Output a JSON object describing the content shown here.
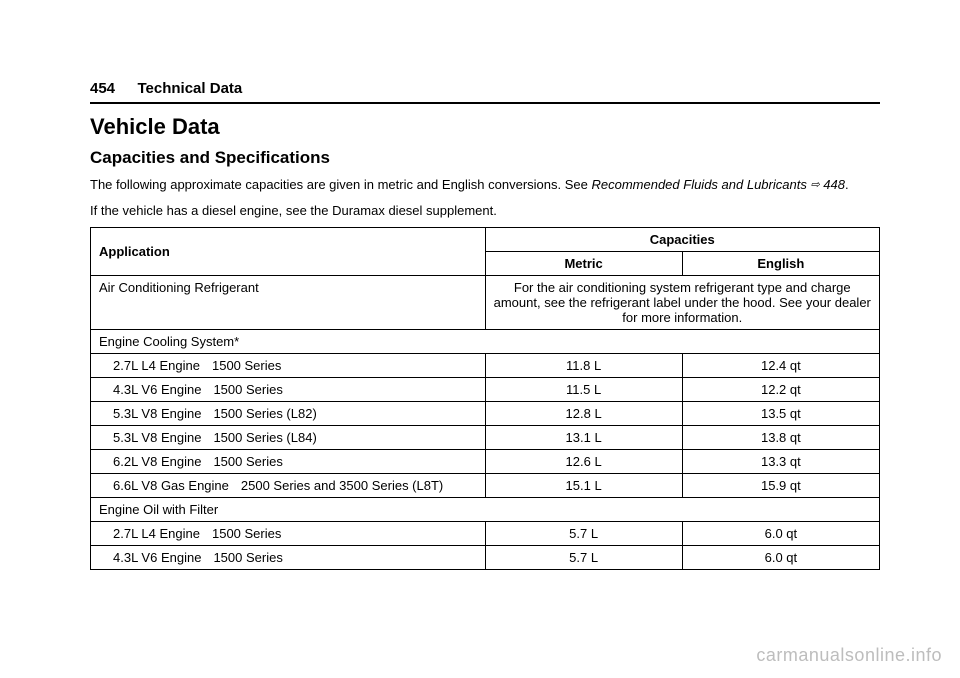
{
  "header": {
    "page_number": "454",
    "section": "Technical Data"
  },
  "title": "Vehicle Data",
  "subtitle": "Capacities and Specifications",
  "intro_text_1a": "The following approximate capacities are given in metric and English conversions. See ",
  "intro_text_1b": "Recommended Fluids and Lubricants",
  "intro_ref_icon": "⇨",
  "intro_ref_page": "448",
  "intro_text_1c": ".",
  "intro_text_2": "If the vehicle has a diesel engine, see the Duramax diesel supplement.",
  "table": {
    "header": {
      "application": "Application",
      "capacities": "Capacities",
      "metric": "Metric",
      "english": "English"
    },
    "rows": [
      {
        "type": "note",
        "application": "Air Conditioning Refrigerant",
        "note": "For the air conditioning system refrigerant type and charge amount, see the refrigerant label under the hood. See your dealer for more information."
      },
      {
        "type": "section",
        "label": "Engine Cooling System*"
      },
      {
        "type": "data",
        "engine": "2.7L L4 Engine",
        "series": "1500 Series",
        "metric": "11.8 L",
        "english": "12.4 qt"
      },
      {
        "type": "data",
        "engine": "4.3L V6 Engine",
        "series": "1500 Series",
        "metric": "11.5 L",
        "english": "12.2 qt"
      },
      {
        "type": "data",
        "engine": "5.3L V8 Engine",
        "series": "1500 Series (L82)",
        "metric": "12.8 L",
        "english": "13.5 qt"
      },
      {
        "type": "data",
        "engine": "5.3L V8 Engine",
        "series": "1500 Series (L84)",
        "metric": "13.1 L",
        "english": "13.8 qt"
      },
      {
        "type": "data",
        "engine": "6.2L V8 Engine",
        "series": "1500 Series",
        "metric": "12.6 L",
        "english": "13.3 qt"
      },
      {
        "type": "data",
        "engine": "6.6L V8 Gas Engine",
        "series": "2500 Series and 3500 Series (L8T)",
        "metric": "15.1 L",
        "english": "15.9 qt"
      },
      {
        "type": "section",
        "label": "Engine Oil with Filter"
      },
      {
        "type": "data",
        "engine": "2.7L L4 Engine",
        "series": "1500 Series",
        "metric": "5.7 L",
        "english": "6.0 qt"
      },
      {
        "type": "data",
        "engine": "4.3L V6 Engine",
        "series": "1500 Series",
        "metric": "5.7 L",
        "english": "6.0 qt"
      }
    ]
  },
  "watermark": "carmanualsonline.info"
}
